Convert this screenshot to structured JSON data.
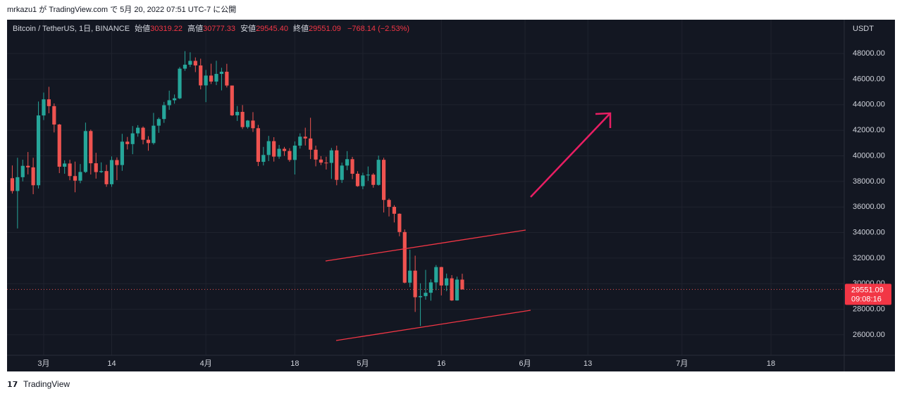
{
  "published": "mrkazu1 が TradingView.com で 5月 20, 2022 07:51 UTC-7 に公開",
  "footer": "TradingView",
  "chart_data": {
    "type": "candlestick",
    "legend": {
      "symbol": "Bitcoin / TetherUS, 1日, BINANCE",
      "open_label": "始値",
      "open": "30319.22",
      "high_label": "高値",
      "high": "30777.33",
      "low_label": "安値",
      "low": "29545.40",
      "close_label": "終値",
      "close": "29551.09",
      "change": "−768.14 (−2.53%)"
    },
    "axis_unit": "USDT",
    "countdown": "09:08:16",
    "up_color": "#26a69a",
    "down_color": "#ef5350",
    "x": [
      "2022-02-23",
      "2022-02-24",
      "2022-02-25",
      "2022-02-26",
      "2022-02-27",
      "2022-02-28",
      "2022-03-01",
      "2022-03-02",
      "2022-03-03",
      "2022-03-04",
      "2022-03-05",
      "2022-03-06",
      "2022-03-07",
      "2022-03-08",
      "2022-03-09",
      "2022-03-10",
      "2022-03-11",
      "2022-03-12",
      "2022-03-13",
      "2022-03-14",
      "2022-03-15",
      "2022-03-16",
      "2022-03-17",
      "2022-03-18",
      "2022-03-19",
      "2022-03-20",
      "2022-03-21",
      "2022-03-22",
      "2022-03-23",
      "2022-03-24",
      "2022-03-25",
      "2022-03-26",
      "2022-03-27",
      "2022-03-28",
      "2022-03-29",
      "2022-03-30",
      "2022-03-31",
      "2022-04-01",
      "2022-04-02",
      "2022-04-03",
      "2022-04-04",
      "2022-04-05",
      "2022-04-06",
      "2022-04-07",
      "2022-04-08",
      "2022-04-09",
      "2022-04-10",
      "2022-04-11",
      "2022-04-12",
      "2022-04-13",
      "2022-04-14",
      "2022-04-15",
      "2022-04-16",
      "2022-04-17",
      "2022-04-18",
      "2022-04-19",
      "2022-04-20",
      "2022-04-21",
      "2022-04-22",
      "2022-04-23",
      "2022-04-24",
      "2022-04-25",
      "2022-04-26",
      "2022-04-27",
      "2022-04-28",
      "2022-04-29",
      "2022-04-30",
      "2022-05-01",
      "2022-05-02",
      "2022-05-03",
      "2022-05-04",
      "2022-05-05",
      "2022-05-06",
      "2022-05-07",
      "2022-05-08",
      "2022-05-09",
      "2022-05-10",
      "2022-05-11",
      "2022-05-12",
      "2022-05-13",
      "2022-05-14",
      "2022-05-15",
      "2022-05-16",
      "2022-05-17",
      "2022-05-18",
      "2022-05-19",
      "2022-05-20"
    ],
    "open": [
      38250,
      37250,
      38330,
      39220,
      39100,
      37700,
      43160,
      44420,
      43890,
      42450,
      39150,
      39400,
      38420,
      38060,
      38740,
      41940,
      39420,
      38730,
      38810,
      37780,
      39670,
      39280,
      41110,
      40920,
      41760,
      42200,
      41260,
      41000,
      42360,
      42880,
      43960,
      44350,
      44500,
      46820,
      47130,
      47430,
      47070,
      45510,
      46280,
      45810,
      46410,
      46580,
      45500,
      43170,
      43440,
      42250,
      42760,
      42160,
      39530,
      40070,
      41150,
      39940,
      40550,
      40380,
      39680,
      40800,
      41500,
      41360,
      40480,
      39710,
      39470,
      39450,
      40430,
      38120,
      39240,
      39740,
      38600,
      37630,
      38470,
      38530,
      37730,
      39690,
      36550,
      36010,
      35470,
      34040,
      30080,
      31020,
      28940,
      29030,
      29290,
      30100,
      31300,
      29860,
      30420,
      28690,
      30319.22
    ],
    "high": [
      39250,
      39850,
      39700,
      40300,
      39850,
      44250,
      44950,
      45400,
      44100,
      42500,
      39650,
      39690,
      39550,
      39360,
      42600,
      42050,
      40240,
      39490,
      39300,
      39950,
      39880,
      41720,
      41480,
      42330,
      42400,
      42300,
      41540,
      43360,
      43000,
      44220,
      45100,
      44800,
      46950,
      48190,
      48100,
      47700,
      47600,
      46720,
      47210,
      47440,
      46890,
      47200,
      45500,
      43900,
      43970,
      42800,
      43420,
      42420,
      40700,
      41560,
      41460,
      40850,
      40700,
      40600,
      41130,
      41760,
      42200,
      42980,
      40800,
      39980,
      39930,
      40620,
      40800,
      39470,
      40370,
      39920,
      38800,
      38680,
      39170,
      38650,
      40020,
      39850,
      36660,
      36140,
      35500,
      34240,
      32660,
      32190,
      30030,
      31080,
      30340,
      31460,
      31320,
      30790,
      30670,
      30550,
      30777.33
    ],
    "low": [
      37050,
      34320,
      38000,
      38550,
      37000,
      37450,
      42800,
      43330,
      41830,
      38650,
      38600,
      38090,
      37150,
      37860,
      38660,
      38540,
      38220,
      38660,
      37580,
      37580,
      38100,
      38830,
      40500,
      40130,
      41500,
      40900,
      40400,
      40880,
      41800,
      42580,
      43600,
      44080,
      44430,
      46650,
      46950,
      46550,
      45200,
      44200,
      45620,
      45530,
      45120,
      45350,
      43120,
      42730,
      42100,
      42130,
      41870,
      39200,
      39250,
      39590,
      39550,
      39770,
      40000,
      39540,
      38540,
      40570,
      40810,
      39750,
      39180,
      39280,
      38930,
      38200,
      37700,
      37880,
      38880,
      38180,
      37580,
      37390,
      38050,
      37510,
      37670,
      35570,
      35260,
      34790,
      33710,
      30030,
      29730,
      27790,
      26700,
      28750,
      28670,
      29490,
      29080,
      29420,
      28650,
      28670,
      29545.4
    ],
    "close": [
      37250,
      38330,
      39220,
      39100,
      37700,
      43160,
      44420,
      43890,
      42450,
      39150,
      39400,
      38420,
      38060,
      38740,
      41940,
      39420,
      38730,
      38810,
      37780,
      39670,
      39280,
      41110,
      40920,
      41760,
      42200,
      41260,
      41000,
      42360,
      42880,
      43960,
      44350,
      44500,
      46820,
      47130,
      47430,
      47070,
      45510,
      46280,
      45810,
      46410,
      46580,
      45500,
      43170,
      43440,
      42250,
      42760,
      42160,
      39530,
      40070,
      41150,
      39940,
      40550,
      40380,
      39680,
      40800,
      41500,
      41360,
      40480,
      39710,
      39470,
      39450,
      40430,
      38120,
      39240,
      39740,
      38600,
      37630,
      38470,
      38530,
      37730,
      39690,
      36550,
      36010,
      35470,
      34040,
      30080,
      31020,
      28940,
      29030,
      29290,
      30100,
      31300,
      29860,
      30420,
      28690,
      30320,
      29551.09
    ],
    "xlim": [
      "2022-02-22",
      "2022-08-01"
    ],
    "xticks": [
      {
        "value": "2022-03-01",
        "label": "3月"
      },
      {
        "value": "2022-03-14",
        "label": "14"
      },
      {
        "value": "2022-04-01",
        "label": "4月"
      },
      {
        "value": "2022-04-18",
        "label": "18"
      },
      {
        "value": "2022-05-01",
        "label": "5月"
      },
      {
        "value": "2022-05-16",
        "label": "16"
      },
      {
        "value": "2022-06-01",
        "label": "6月"
      },
      {
        "value": "2022-06-13",
        "label": "13"
      },
      {
        "value": "2022-07-01",
        "label": "7月"
      },
      {
        "value": "2022-07-18",
        "label": "18"
      }
    ],
    "ylim": [
      24400,
      50650
    ],
    "yticks": [
      {
        "value": 26000,
        "label": "26000.00"
      },
      {
        "value": 28000,
        "label": "28000.00"
      },
      {
        "value": 30000,
        "label": "30000.00"
      },
      {
        "value": 32000,
        "label": "32000.00"
      },
      {
        "value": 34000,
        "label": "34000.00"
      },
      {
        "value": 36000,
        "label": "36000.00"
      },
      {
        "value": 38000,
        "label": "38000.00"
      },
      {
        "value": 40000,
        "label": "40000.00"
      },
      {
        "value": 42000,
        "label": "42000.00"
      },
      {
        "value": 44000,
        "label": "44000.00"
      },
      {
        "value": 46000,
        "label": "46000.00"
      },
      {
        "value": 48000,
        "label": "48000.00"
      }
    ],
    "grid": true
  }
}
